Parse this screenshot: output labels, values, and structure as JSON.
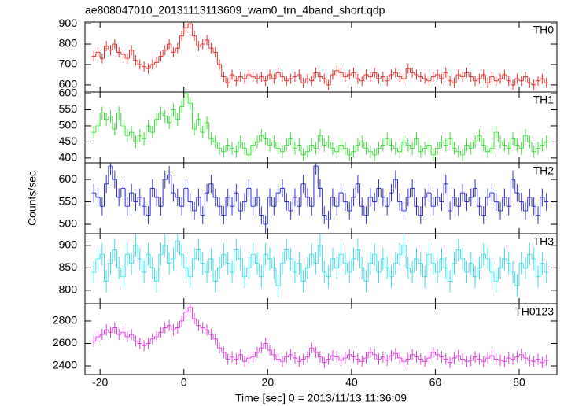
{
  "chart_data": {
    "type": "step",
    "title": "ae808047010_20131113113609_wam0_trn_4band_short.qdp",
    "xlabel": "Time [sec] 0 = 2013/11/13 11:36:09",
    "ylabel": "Counts/sec",
    "xlim": [
      -23.6,
      89
    ],
    "xticks": [
      -20,
      0,
      20,
      40,
      60,
      80
    ],
    "x": [
      -21.5,
      -20.5,
      -19.5,
      -18.5,
      -17.5,
      -16.5,
      -15.5,
      -14.5,
      -13.5,
      -12.5,
      -11.5,
      -10.5,
      -9.5,
      -8.5,
      -7.5,
      -6.5,
      -5.5,
      -4.5,
      -3.5,
      -2.5,
      -1.5,
      -0.5,
      0.5,
      1.5,
      2.5,
      3.5,
      4.5,
      5.5,
      6.5,
      7.5,
      8.5,
      9.5,
      10.5,
      11.5,
      12.5,
      13.5,
      14.5,
      15.5,
      16.5,
      17.5,
      18.5,
      19.5,
      20.5,
      21.5,
      22.5,
      23.5,
      24.5,
      25.5,
      26.5,
      27.5,
      28.5,
      29.5,
      30.5,
      31.5,
      32.5,
      33.5,
      34.5,
      35.5,
      36.5,
      37.5,
      38.5,
      39.5,
      40.5,
      41.5,
      42.5,
      43.5,
      44.5,
      45.5,
      46.5,
      47.5,
      48.5,
      49.5,
      50.5,
      51.5,
      52.5,
      53.5,
      54.5,
      55.5,
      56.5,
      57.5,
      58.5,
      59.5,
      60.5,
      61.5,
      62.5,
      63.5,
      64.5,
      65.5,
      66.5,
      67.5,
      68.5,
      69.5,
      70.5,
      71.5,
      72.5,
      73.5,
      74.5,
      75.5,
      76.5,
      77.5,
      78.5,
      79.5,
      80.5,
      81.5,
      82.5,
      83.5,
      84.5,
      85.5,
      86.5
    ],
    "series": [
      {
        "name": "TH0",
        "color": "#e8322e",
        "error": 25,
        "ylim": [
          565,
          908
        ],
        "yticks": [
          600,
          700,
          800,
          900
        ],
        "values": [
          740,
          760,
          730,
          790,
          770,
          800,
          760,
          750,
          730,
          770,
          720,
          700,
          690,
          680,
          700,
          710,
          740,
          770,
          800,
          760,
          780,
          840,
          880,
          900,
          840,
          790,
          800,
          820,
          780,
          760,
          700,
          640,
          610,
          650,
          620,
          640,
          630,
          650,
          640,
          630,
          640,
          620,
          650,
          630,
          660,
          640,
          620,
          630,
          640,
          650,
          610,
          630,
          620,
          660,
          640,
          630,
          600,
          650,
          670,
          660,
          640,
          650,
          660,
          630,
          620,
          650,
          640,
          660,
          630,
          640,
          620,
          650,
          660,
          640,
          630,
          680,
          660,
          650,
          640,
          630,
          620,
          640,
          650,
          630,
          660,
          620,
          610,
          650,
          640,
          660,
          640,
          620,
          630,
          650,
          610,
          640,
          620,
          630,
          650,
          620,
          600,
          630,
          620,
          640,
          610,
          600,
          620,
          630,
          610
        ]
      },
      {
        "name": "TH1",
        "color": "#3fe03f",
        "error": 20,
        "ylim": [
          385,
          605
        ],
        "yticks": [
          400,
          450,
          500,
          550,
          600
        ],
        "values": [
          480,
          500,
          540,
          520,
          530,
          490,
          540,
          500,
          470,
          480,
          450,
          470,
          460,
          500,
          480,
          520,
          540,
          530,
          510,
          550,
          520,
          560,
          600,
          570,
          490,
          520,
          480,
          510,
          460,
          450,
          430,
          420,
          440,
          430,
          420,
          450,
          430,
          410,
          440,
          450,
          470,
          460,
          440,
          450,
          430,
          420,
          440,
          460,
          430,
          440,
          410,
          420,
          440,
          430,
          470,
          440,
          450,
          430,
          420,
          440,
          430,
          410,
          420,
          440,
          450,
          430,
          420,
          410,
          430,
          440,
          460,
          440,
          430,
          420,
          450,
          440,
          430,
          460,
          420,
          430,
          440,
          410,
          430,
          450,
          440,
          460,
          430,
          420,
          410,
          440,
          430,
          450,
          470,
          440,
          420,
          430,
          480,
          450,
          440,
          430,
          460,
          440,
          430,
          470,
          450,
          420,
          430,
          440,
          450
        ]
      },
      {
        "name": "TH2",
        "color": "#2f2fd0",
        "error": 20,
        "ylim": [
          479,
          637
        ],
        "yticks": [
          500,
          550,
          600
        ],
        "values": [
          570,
          560,
          540,
          590,
          630,
          600,
          560,
          580,
          540,
          570,
          550,
          560,
          540,
          520,
          580,
          560,
          540,
          600,
          610,
          570,
          560,
          540,
          580,
          550,
          530,
          560,
          520,
          570,
          590,
          560,
          540,
          520,
          560,
          540,
          570,
          530,
          550,
          580,
          540,
          560,
          520,
          500,
          560,
          540,
          570,
          580,
          550,
          530,
          560,
          540,
          590,
          560,
          540,
          630,
          580,
          520,
          510,
          560,
          540,
          570,
          550,
          530,
          560,
          590,
          540,
          520,
          560,
          550,
          580,
          560,
          540,
          570,
          600,
          550,
          530,
          560,
          580,
          540,
          520,
          560,
          570,
          540,
          560,
          550,
          590,
          530,
          560,
          540,
          570,
          550,
          560,
          580,
          540,
          520,
          560,
          570,
          550,
          530,
          560,
          540,
          600,
          570,
          550,
          530,
          560,
          540,
          520,
          560,
          550
        ]
      },
      {
        "name": "TH3",
        "color": "#3fe0e8",
        "error": 25,
        "ylim": [
          770,
          926
        ],
        "yticks": [
          800,
          850,
          900
        ],
        "values": [
          840,
          870,
          880,
          820,
          860,
          890,
          850,
          830,
          880,
          860,
          900,
          870,
          840,
          880,
          850,
          820,
          880,
          900,
          860,
          870,
          910,
          880,
          850,
          830,
          870,
          890,
          860,
          840,
          870,
          820,
          850,
          880,
          860,
          840,
          890,
          870,
          830,
          850,
          880,
          860,
          830,
          880,
          870,
          850,
          810,
          860,
          890,
          870,
          840,
          860,
          820,
          850,
          880,
          860,
          900,
          840,
          830,
          870,
          850,
          880,
          860,
          840,
          870,
          890,
          850,
          820,
          860,
          880,
          840,
          870,
          850,
          830,
          860,
          880,
          900,
          850,
          840,
          870,
          860,
          830,
          880,
          860,
          840,
          870,
          850,
          820,
          860,
          890,
          870,
          840,
          860,
          830,
          850,
          880,
          870,
          840,
          820,
          850,
          870,
          860,
          840,
          810,
          860,
          850,
          880,
          870,
          830,
          860,
          840
        ]
      },
      {
        "name": "TH0123",
        "color": "#e040e0",
        "error": 50,
        "ylim": [
          2323,
          2954
        ],
        "yticks": [
          2400,
          2600,
          2800
        ],
        "values": [
          2620,
          2660,
          2680,
          2720,
          2700,
          2740,
          2680,
          2700,
          2660,
          2680,
          2620,
          2600,
          2580,
          2600,
          2640,
          2660,
          2700,
          2740,
          2760,
          2720,
          2740,
          2800,
          2880,
          2920,
          2820,
          2760,
          2740,
          2720,
          2680,
          2640,
          2560,
          2520,
          2460,
          2480,
          2460,
          2500,
          2440,
          2470,
          2480,
          2520,
          2560,
          2600,
          2540,
          2500,
          2460,
          2440,
          2480,
          2500,
          2470,
          2440,
          2460,
          2480,
          2560,
          2520,
          2480,
          2430,
          2460,
          2490,
          2480,
          2450,
          2470,
          2500,
          2480,
          2460,
          2440,
          2470,
          2520,
          2500,
          2460,
          2480,
          2450,
          2490,
          2510,
          2470,
          2440,
          2460,
          2500,
          2480,
          2460,
          2440,
          2470,
          2520,
          2500,
          2480,
          2460,
          2430,
          2470,
          2490,
          2460,
          2440,
          2450,
          2480,
          2460,
          2440,
          2470,
          2490,
          2460,
          2450,
          2440,
          2470,
          2460,
          2480,
          2500,
          2470,
          2450,
          2440,
          2460,
          2430,
          2450
        ]
      }
    ]
  }
}
